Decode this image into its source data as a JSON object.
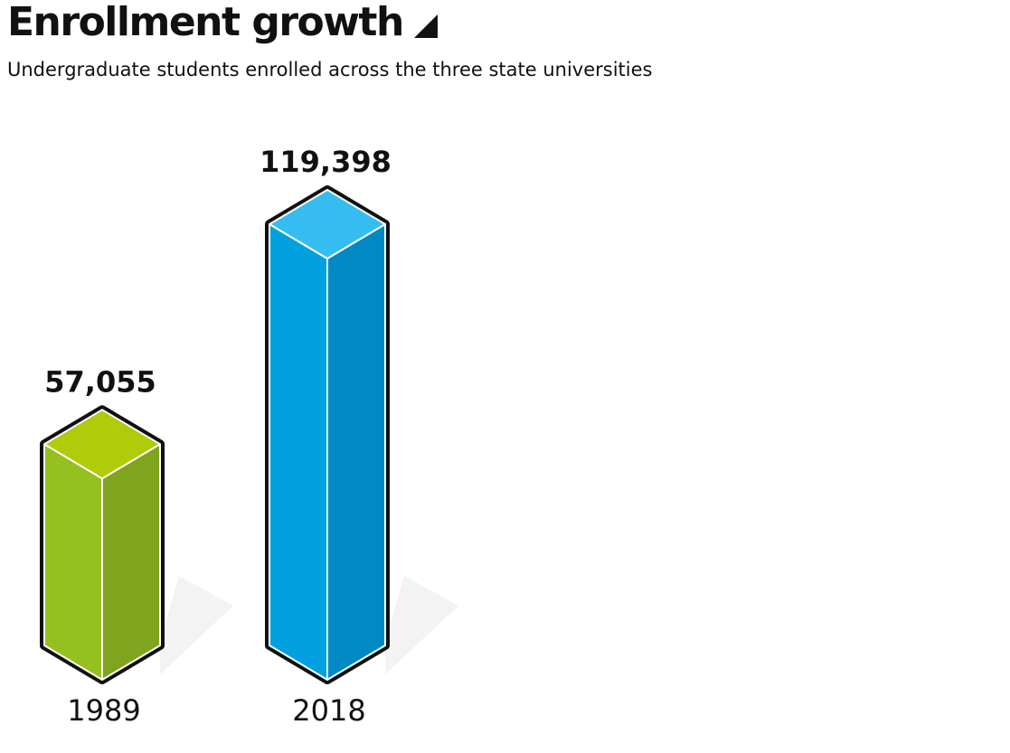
{
  "header": {
    "title": "Enrollment growth",
    "title_icon": "triangle-icon",
    "subtitle": "Undergraduate students enrolled across the three state universities"
  },
  "chart_data": {
    "type": "bar",
    "style": "isometric-3d-prism",
    "categories": [
      "1989",
      "2018"
    ],
    "values": [
      57055,
      119398
    ],
    "value_labels": [
      "57,055",
      "119,398"
    ],
    "title": "Enrollment growth",
    "subtitle": "Undergraduate students enrolled across the three state universities",
    "xlabel": "",
    "ylabel": "",
    "ylim": [
      0,
      119398
    ],
    "grid": false,
    "legend": "none",
    "colors": {
      "1989": {
        "top": "#afcb09",
        "front": "#94c11f",
        "side": "#7fa41d"
      },
      "2018": {
        "top": "#35bdf2",
        "front": "#00a0e1",
        "side": "#0089c3"
      },
      "outline": "#111111",
      "edge": "#ffffff",
      "shadow": "#f3f3f3"
    }
  }
}
